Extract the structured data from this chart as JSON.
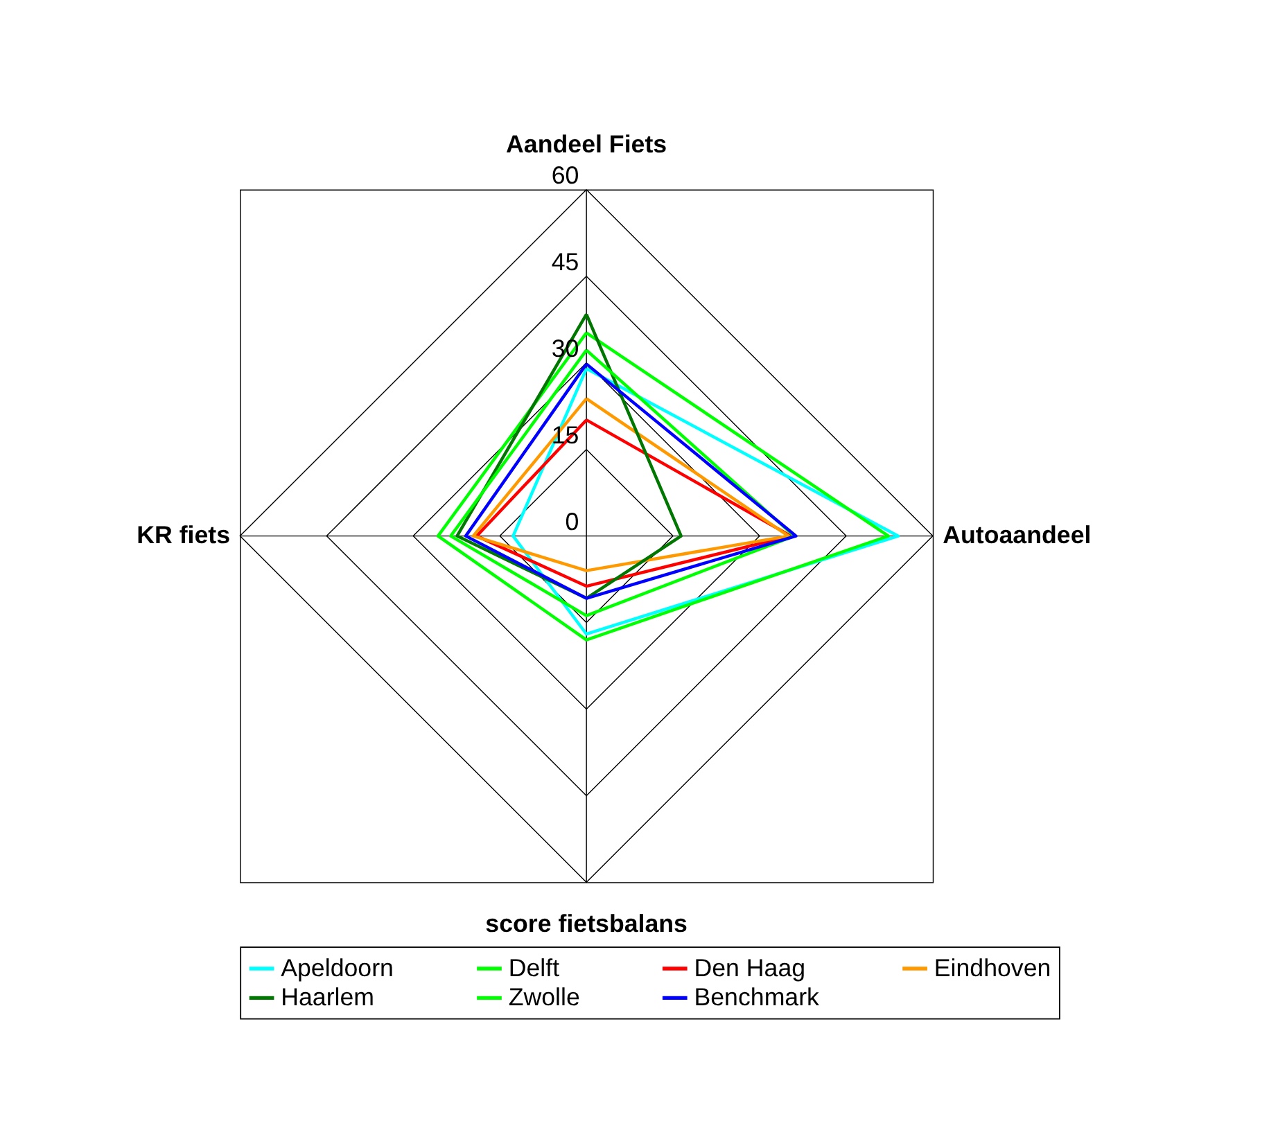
{
  "chart_data": {
    "type": "radar",
    "categories": [
      "Aandeel Fiets",
      "Autoaandeel",
      "score fietsbalans",
      "KR fiets"
    ],
    "series": [
      {
        "name": "Apeldoorn",
        "color": "#00ffff",
        "values": [
          29,
          54,
          17,
          12.7
        ]
      },
      {
        "name": "Delft",
        "color": "#00ff00",
        "values": [
          35.2,
          52.3,
          18,
          25.7
        ]
      },
      {
        "name": "Den Haag",
        "color": "#ff0000",
        "values": [
          20.1,
          35.4,
          8.7,
          19
        ]
      },
      {
        "name": "Eindhoven",
        "color": "#ff9900",
        "values": [
          23.8,
          35,
          6,
          19.6
        ]
      },
      {
        "name": "Haarlem",
        "color": "#007700",
        "values": [
          38.4,
          16.4,
          10.8,
          22.4
        ]
      },
      {
        "name": "Zwolle",
        "color": "#00ff00",
        "values": [
          32.2,
          36,
          13.8,
          23.5
        ]
      },
      {
        "name": "Benchmark",
        "color": "#0000ff",
        "values": [
          29.8,
          36.3,
          10.8,
          20.9
        ]
      }
    ],
    "ylim": [
      0,
      60
    ],
    "yticks": [
      0,
      15,
      30,
      45,
      60
    ],
    "grid": true,
    "legend": "bottom",
    "line_style": "solid",
    "marker": "none"
  }
}
